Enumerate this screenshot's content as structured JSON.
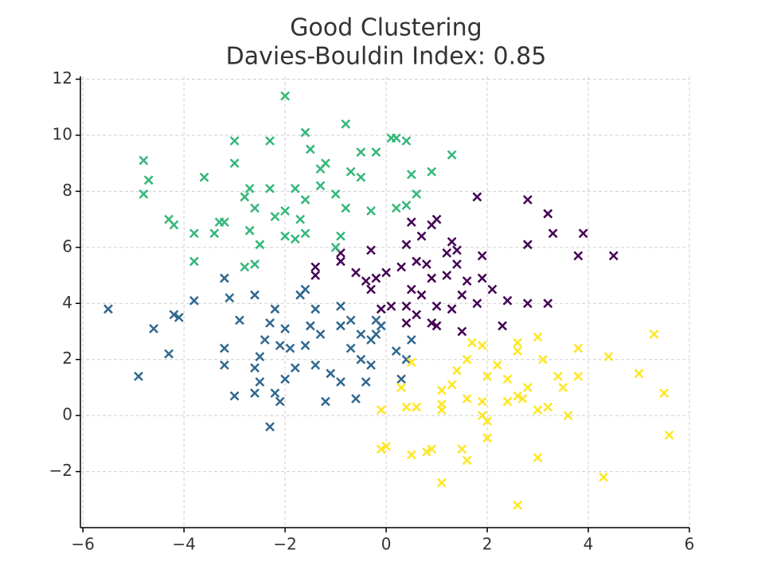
{
  "chart_data": {
    "type": "scatter",
    "title": "Good Clustering",
    "subtitle": "Davies-Bouldin Index: 0.85",
    "xlim": [
      -6.05,
      6.0
    ],
    "ylim": [
      -4.0,
      12.1
    ],
    "xticks": [
      {
        "value": -6,
        "label": "−6"
      },
      {
        "value": -4,
        "label": "−4"
      },
      {
        "value": -2,
        "label": "−2"
      },
      0,
      2,
      4,
      6
    ],
    "yticks": [
      {
        "value": -2,
        "label": "−2"
      },
      0,
      2,
      4,
      6,
      8,
      10,
      12
    ],
    "grid": true,
    "marker": "x",
    "series": [
      {
        "color": "#440154",
        "x": [
          1.8,
          2.8,
          3.2,
          3.3,
          3.9,
          2.8,
          3.8,
          4.5,
          1.0,
          0.9,
          0.5,
          0.7,
          1.3,
          1.4,
          0.4,
          1.9,
          1.2,
          0.6,
          0.8,
          1.4,
          0.3,
          -0.3,
          -0.9,
          -0.9,
          -1.4,
          -1.4,
          -0.6,
          -0.4,
          -0.2,
          0,
          0.9,
          1.2,
          1.6,
          1.9,
          2.1,
          0.5,
          0.7,
          -0.3,
          0.1,
          -0.1,
          0.4,
          1.0,
          1.3,
          1.8,
          2.4,
          2.8,
          3.2,
          0.9,
          1.0,
          1.5,
          2.3,
          0.6,
          0.4,
          1.5
        ],
        "values": [
          7.8,
          7.7,
          7.2,
          6.5,
          6.5,
          6.1,
          5.7,
          5.7,
          7.0,
          6.8,
          6.9,
          6.4,
          6.2,
          5.9,
          6.1,
          5.7,
          5.8,
          5.5,
          5.4,
          5.4,
          5.3,
          5.9,
          5.8,
          5.5,
          5.3,
          5.0,
          5.1,
          4.8,
          4.9,
          5.1,
          4.9,
          5.0,
          4.8,
          4.9,
          4.5,
          4.5,
          4.3,
          4.5,
          3.9,
          3.8,
          3.9,
          3.9,
          3.8,
          4.0,
          4.1,
          4.0,
          4.0,
          3.3,
          3.2,
          3.0,
          3.2,
          3.6,
          3.3,
          4.3
        ]
      },
      {
        "color": "#31688e",
        "x": [
          -5.5,
          -4.6,
          -4.9,
          -4.3,
          -4.1,
          -4.2,
          -3.8,
          -3.2,
          -3.1,
          -2.6,
          -2.9,
          -3.2,
          -3.2,
          -3.0,
          -2.6,
          -2.5,
          -2.6,
          -2.5,
          -2.4,
          -2.3,
          -2.2,
          -2.0,
          -2.1,
          -1.9,
          -1.8,
          -2.0,
          -2.2,
          -2.1,
          -2.3,
          -1.7,
          -1.6,
          -1.4,
          -1.5,
          -1.3,
          -1.6,
          -1.4,
          -1.2,
          -1.1,
          -0.9,
          -0.9,
          -0.9,
          -0.7,
          -0.5,
          -0.7,
          -0.5,
          -0.3,
          -0.4,
          -0.6,
          -0.2,
          -0.3,
          0.2,
          0.4,
          0.3,
          0.5,
          -0.1,
          -0.2
        ],
        "values": [
          3.8,
          3.1,
          1.4,
          2.2,
          3.5,
          3.6,
          4.1,
          4.9,
          4.2,
          4.3,
          3.4,
          2.4,
          1.8,
          0.7,
          0.8,
          1.2,
          1.7,
          2.1,
          2.7,
          3.3,
          3.8,
          3.1,
          2.5,
          2.4,
          1.7,
          1.3,
          0.8,
          0.5,
          -0.4,
          4.3,
          4.5,
          3.8,
          3.2,
          2.9,
          2.5,
          1.8,
          0.5,
          1.5,
          1.2,
          3.9,
          3.2,
          3.4,
          2.9,
          2.4,
          2.0,
          1.8,
          1.2,
          0.6,
          3.4,
          2.7,
          2.3,
          2.0,
          1.3,
          2.7,
          3.2,
          2.9
        ]
      },
      {
        "color": "#35b779",
        "x": [
          -4.8,
          -4.7,
          -4.8,
          -4.3,
          -4.2,
          -3.6,
          -3.8,
          -3.3,
          -3.2,
          -3.4,
          -3.8,
          -3.0,
          -3.0,
          -2.8,
          -2.7,
          -2.6,
          -2.7,
          -2.5,
          -2.8,
          -2.6,
          -2.3,
          -2.3,
          -2.2,
          -2.0,
          -2.0,
          -2.0,
          -1.6,
          -1.8,
          -1.6,
          -1.7,
          -1.6,
          -1.8,
          -1.5,
          -1.3,
          -1.2,
          -1.3,
          -1.0,
          -0.8,
          -0.9,
          -1.0,
          -0.8,
          -0.7,
          -0.5,
          -0.5,
          -0.3,
          -0.2,
          0.1,
          0.2,
          0.4,
          0.5,
          0.2,
          0.4,
          0.6,
          0.9,
          1.3
        ],
        "values": [
          9.1,
          8.4,
          7.9,
          7.0,
          6.8,
          8.5,
          6.5,
          6.9,
          6.9,
          6.5,
          5.5,
          9.8,
          9.0,
          7.8,
          8.1,
          7.4,
          6.6,
          6.1,
          5.3,
          5.4,
          9.8,
          8.1,
          7.1,
          7.3,
          6.4,
          11.4,
          10.1,
          8.1,
          7.7,
          7.0,
          6.5,
          6.3,
          9.5,
          8.8,
          9.0,
          8.2,
          7.9,
          7.4,
          6.4,
          6.0,
          10.4,
          8.7,
          8.5,
          9.4,
          7.3,
          9.4,
          9.9,
          9.9,
          9.8,
          8.6,
          7.4,
          7.5,
          7.9,
          8.7,
          9.3
        ]
      },
      {
        "color": "#fde725",
        "x": [
          5.3,
          5.0,
          5.5,
          5.6,
          4.4,
          4.3,
          3.8,
          3.8,
          3.5,
          3.4,
          3.0,
          3.1,
          3.2,
          3.0,
          2.8,
          2.7,
          3.0,
          2.6,
          2.6,
          2.2,
          2.4,
          2.4,
          2.6,
          2.6,
          1.9,
          1.7,
          1.6,
          1.4,
          1.3,
          1.6,
          1.9,
          2.0,
          2.0,
          2.0,
          1.9,
          1.5,
          1.6,
          1.1,
          1.1,
          1.1,
          0.9,
          0.8,
          0.5,
          0.6,
          0.4,
          0.3,
          0.5,
          -0.1,
          -0.1,
          0.0,
          1.1,
          3.6
        ],
        "values": [
          2.9,
          1.5,
          0.8,
          -0.7,
          2.1,
          -2.2,
          2.4,
          1.4,
          1.0,
          1.4,
          2.8,
          2.0,
          0.3,
          0.2,
          1.0,
          0.6,
          -1.5,
          2.6,
          2.3,
          1.8,
          1.3,
          0.5,
          0.7,
          -3.2,
          2.5,
          2.6,
          2.0,
          1.6,
          1.1,
          0.6,
          0.5,
          1.4,
          -0.2,
          -0.8,
          0.0,
          -1.2,
          -1.6,
          0.4,
          0.2,
          0.9,
          -1.2,
          -1.3,
          -1.4,
          0.3,
          0.3,
          1.0,
          1.9,
          0.2,
          -1.2,
          -1.1,
          -2.4,
          0.0
        ]
      }
    ]
  }
}
